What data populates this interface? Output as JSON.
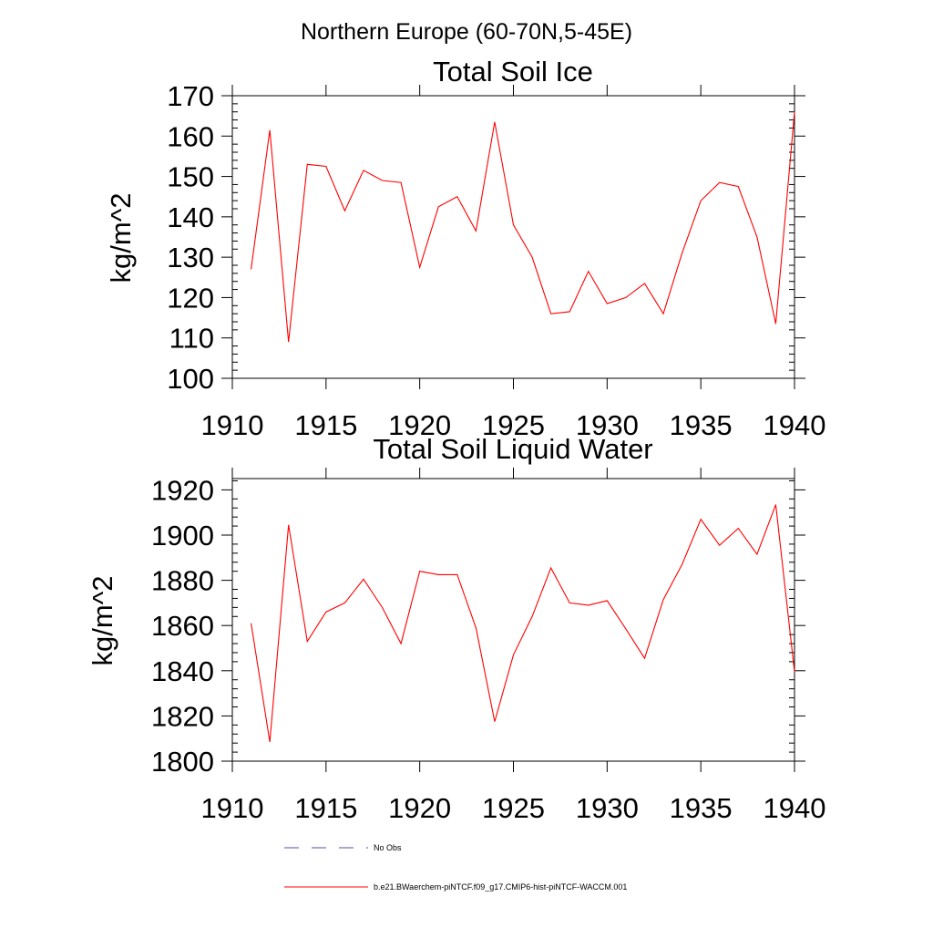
{
  "figure": {
    "main_title": "Northern Europe (60-70N,5-45E)"
  },
  "chart_data": [
    {
      "type": "line",
      "title": "Total Soil Ice",
      "xlabel": "",
      "ylabel": "kg/m^2",
      "xlim": [
        1910,
        1940
      ],
      "ylim": [
        100,
        170
      ],
      "xticks": [
        1910,
        1915,
        1920,
        1925,
        1930,
        1935,
        1940
      ],
      "yticks": [
        100,
        110,
        120,
        130,
        140,
        150,
        160,
        170
      ],
      "grid": false,
      "series": [
        {
          "name": "b.e21.BWaerchem-piNTCF.f09_g17.CMIP6-hist-piNTCF-WACCM.001",
          "color": "#ff0000",
          "x": [
            1911,
            1912,
            1913,
            1914,
            1915,
            1916,
            1917,
            1918,
            1919,
            1920,
            1921,
            1922,
            1923,
            1924,
            1925,
            1926,
            1927,
            1928,
            1929,
            1930,
            1931,
            1932,
            1933,
            1934,
            1935,
            1936,
            1937,
            1938,
            1939,
            1940
          ],
          "values": [
            127,
            161.5,
            109,
            153,
            152.5,
            141.5,
            151.5,
            149,
            148.5,
            127.5,
            142.5,
            145,
            136.5,
            163.5,
            138,
            130,
            116,
            116.5,
            126.5,
            118.5,
            120,
            123.5,
            116,
            131,
            144,
            148.5,
            147.5,
            135,
            113.5,
            166
          ]
        }
      ]
    },
    {
      "type": "line",
      "title": "Total Soil Liquid Water",
      "xlabel": "",
      "ylabel": "kg/m^2",
      "xlim": [
        1910,
        1940
      ],
      "ylim": [
        1800,
        1925
      ],
      "xticks": [
        1910,
        1915,
        1920,
        1925,
        1930,
        1935,
        1940
      ],
      "yticks": [
        1800,
        1820,
        1840,
        1860,
        1880,
        1900,
        1920
      ],
      "grid": false,
      "series": [
        {
          "name": "b.e21.BWaerchem-piNTCF.f09_g17.CMIP6-hist-piNTCF-WACCM.001",
          "color": "#ff0000",
          "x": [
            1911,
            1912,
            1913,
            1914,
            1915,
            1916,
            1917,
            1918,
            1919,
            1920,
            1921,
            1922,
            1923,
            1924,
            1925,
            1926,
            1927,
            1928,
            1929,
            1930,
            1931,
            1932,
            1933,
            1934,
            1935,
            1936,
            1937,
            1938,
            1939,
            1940
          ],
          "values": [
            1861,
            1808.5,
            1904.5,
            1853,
            1866,
            1870,
            1880.5,
            1868,
            1852,
            1884,
            1882.5,
            1882.5,
            1859,
            1817.5,
            1847,
            1864,
            1885.5,
            1870,
            1869,
            1871,
            1858.5,
            1845.5,
            1871.5,
            1887,
            1907,
            1895.5,
            1903,
            1891.5,
            1913.5,
            1839.5
          ]
        }
      ]
    }
  ],
  "legend": {
    "placement": "bottom",
    "entries": [
      {
        "label": "No Obs",
        "color": "#5050a0",
        "style": "dashed"
      },
      {
        "label": "b.e21.BWaerchem-piNTCF.f09_g17.CMIP6-hist-piNTCF-WACCM.001",
        "color": "#ff0000",
        "style": "solid"
      }
    ]
  }
}
